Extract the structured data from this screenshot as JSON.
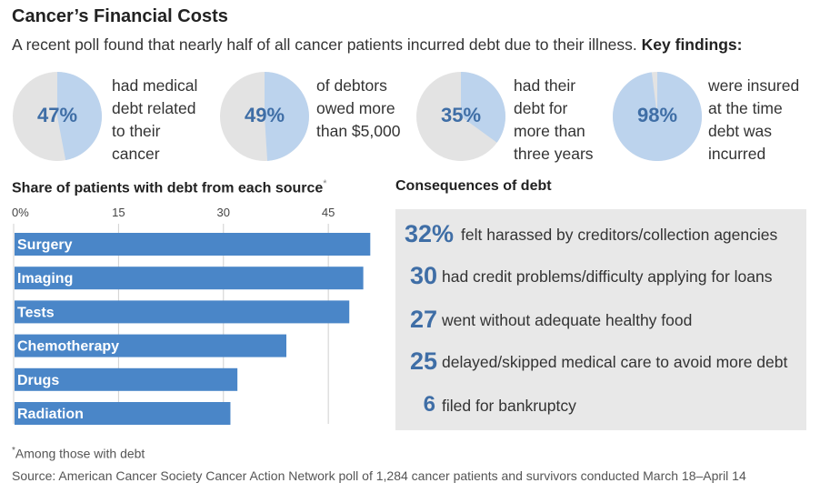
{
  "header": {
    "title": "Cancer’s Financial Costs",
    "subtitle": "A recent poll found that nearly half of all cancer patients incurred debt due to their illness.",
    "subtitle_bold": "Key findings:"
  },
  "colors": {
    "accent": "#3f6ea6",
    "pie_fill": "#bcd3ed",
    "pie_rest": "#e3e3e3",
    "bar_fill": "#4a86c8",
    "panel_bg": "#e8e8e8"
  },
  "findings": [
    {
      "value": 47,
      "label": "47%",
      "text": "had medical debt related to their cancer"
    },
    {
      "value": 49,
      "label": "49%",
      "text": "of debtors owed more than $5,000"
    },
    {
      "value": 35,
      "label": "35%",
      "text": "had their debt for more than three years"
    },
    {
      "value": 98,
      "label": "98%",
      "text": "were insured at the time debt was incurred"
    }
  ],
  "chart_data": {
    "type": "bar",
    "orientation": "horizontal",
    "title": "Share of patients with debt from each source",
    "title_marker": "*",
    "categories": [
      "Surgery",
      "Imaging",
      "Tests",
      "Chemotherapy",
      "Drugs",
      "Radiation"
    ],
    "values": [
      51,
      50,
      48,
      39,
      32,
      31
    ],
    "ticks": [
      "0%",
      "15",
      "30",
      "45"
    ],
    "tick_values": [
      0,
      15,
      30,
      45
    ],
    "xlim": [
      0,
      52
    ],
    "grid": true
  },
  "consequences": {
    "title": "Consequences of debt",
    "items": [
      {
        "value": "32%",
        "text": "felt harassed by creditors/collection agencies"
      },
      {
        "value": "30",
        "text": "had credit problems/difficulty applying for loans"
      },
      {
        "value": "27",
        "text": "went without adequate healthy food"
      },
      {
        "value": "25",
        "text": "delayed/skipped medical care to avoid more debt"
      },
      {
        "value": "6",
        "text": "filed for bankruptcy"
      }
    ]
  },
  "footer": {
    "footnote_marker": "*",
    "footnote": "Among those with debt",
    "source": "Source: American Cancer Society Cancer Action Network poll of 1,284 cancer patients and survivors conducted March 18–April 14"
  }
}
